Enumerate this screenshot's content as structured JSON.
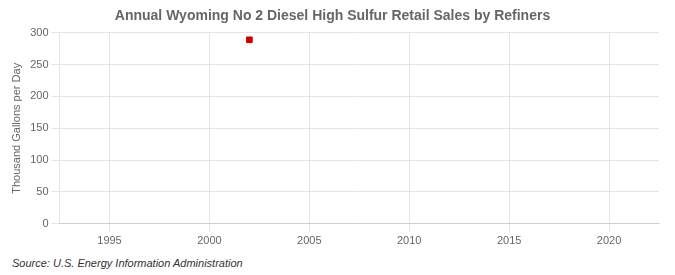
{
  "chart_data": {
    "type": "scatter",
    "title": "Annual Wyoming No 2 Diesel High Sulfur Retail Sales by Refiners",
    "y_label": "Thousand Gallons per Day",
    "annotation": "Source: U.S. Energy Information Administration",
    "x": [
      2002
    ],
    "values": [
      289
    ],
    "color": "#cc0000",
    "marker": "square",
    "xlim": [
      1992.5,
      2022.5
    ],
    "xticks": [
      1995,
      2000,
      2005,
      2010,
      2015,
      2020
    ],
    "ylim": [
      0,
      300
    ],
    "yticks": [
      0,
      50,
      100,
      150,
      200,
      250,
      300
    ],
    "grid": true
  }
}
